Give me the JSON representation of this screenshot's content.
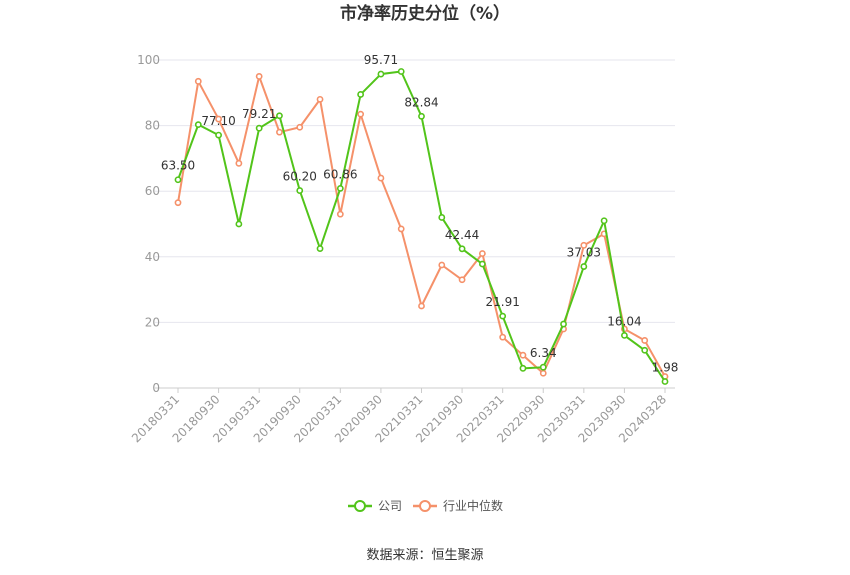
{
  "chart_data": {
    "type": "line",
    "title": "市净率历史分位（%）",
    "ylim": [
      0,
      100
    ],
    "yticks": [
      0,
      20,
      40,
      60,
      80,
      100
    ],
    "x": [
      "20180331",
      "20180630",
      "20180930",
      "20181231",
      "20190331",
      "20190630",
      "20190930",
      "20191231",
      "20200331",
      "20200630",
      "20200930",
      "20201231",
      "20210331",
      "20210630",
      "20210930",
      "20211231",
      "20220331",
      "20220630",
      "20220930",
      "20221231",
      "20230331",
      "20230630",
      "20230930",
      "20231231",
      "20240328"
    ],
    "xtick_labels": [
      "20180331",
      "20180930",
      "20190331",
      "20190930",
      "20200331",
      "20200930",
      "20210331",
      "20210930",
      "20220331",
      "20220930",
      "20230331",
      "20230930",
      "20240328"
    ],
    "grid": true,
    "legend_position": "bottom",
    "series": [
      {
        "name": "公司",
        "color": "#52c41a",
        "values": [
          63.5,
          80.3,
          77.1,
          50.0,
          79.21,
          83.0,
          60.2,
          42.5,
          60.86,
          89.5,
          95.71,
          96.5,
          82.84,
          52.0,
          42.44,
          37.8,
          21.91,
          6.0,
          6.34,
          19.5,
          37.03,
          51.0,
          16.04,
          11.5,
          1.98
        ]
      },
      {
        "name": "行业中位数",
        "color": "#f5916a",
        "values": [
          56.5,
          93.5,
          82.0,
          68.5,
          95.0,
          78.0,
          79.5,
          88.0,
          53.0,
          83.5,
          64.0,
          48.5,
          25.0,
          37.5,
          33.0,
          41.0,
          15.5,
          10.0,
          4.5,
          18.0,
          43.5,
          47.0,
          18.0,
          14.5,
          3.5
        ]
      }
    ],
    "data_labels": [
      {
        "index": 0,
        "text": "63.50"
      },
      {
        "index": 2,
        "text": "77.10"
      },
      {
        "index": 4,
        "text": "79.21"
      },
      {
        "index": 6,
        "text": "60.20"
      },
      {
        "index": 8,
        "text": "60.86"
      },
      {
        "index": 10,
        "text": "95.71"
      },
      {
        "index": 12,
        "text": "82.84"
      },
      {
        "index": 14,
        "text": "42.44"
      },
      {
        "index": 16,
        "text": "21.91"
      },
      {
        "index": 18,
        "text": "6.34"
      },
      {
        "index": 20,
        "text": "37.03"
      },
      {
        "index": 22,
        "text": "16.04"
      },
      {
        "index": 24,
        "text": "1.98"
      }
    ],
    "source": "数据来源：恒生聚源"
  }
}
